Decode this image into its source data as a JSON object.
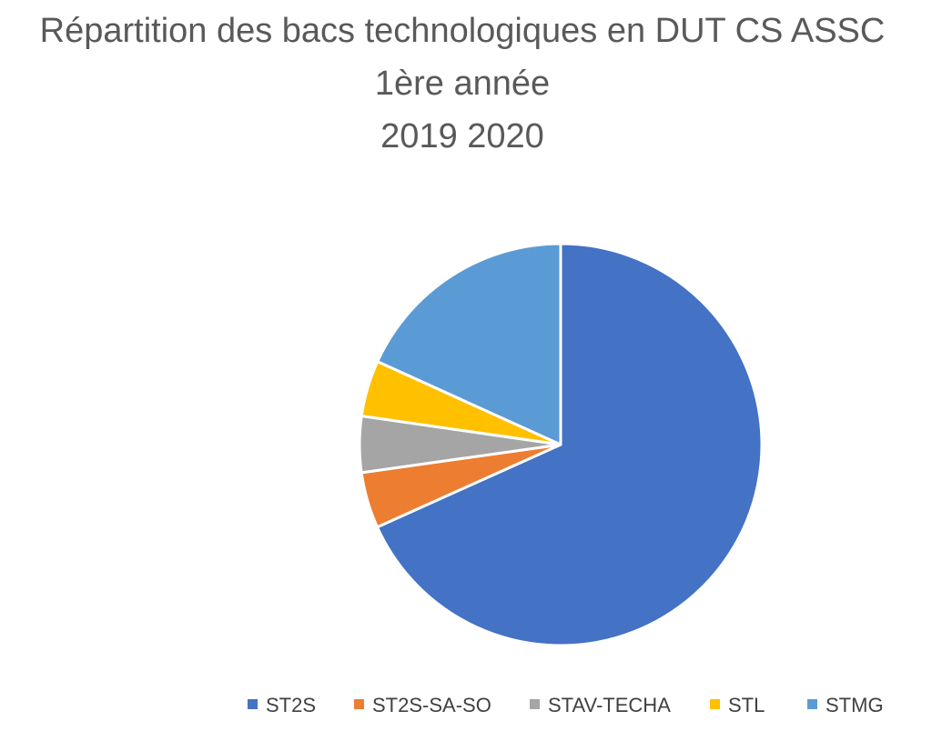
{
  "chart_data": {
    "type": "pie",
    "title": [
      "Répartition des bacs technologiques en DUT CS ASSC",
      "1ère année",
      "2019 2020"
    ],
    "categories": [
      "ST2S",
      "ST2S-SA-SO",
      "STAV-TECHA",
      "STL",
      "STMG"
    ],
    "values": [
      68.2,
      4.5,
      4.5,
      4.5,
      18.2
    ],
    "colors": [
      "#4472C4",
      "#ED7D31",
      "#A5A5A5",
      "#FFC000",
      "#5B9BD5"
    ],
    "legend": "bottom",
    "start_angle_deg": 0,
    "direction": "clockwise"
  }
}
